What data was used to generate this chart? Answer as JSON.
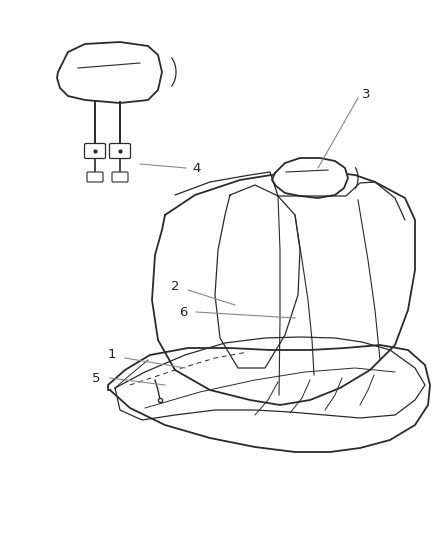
{
  "background_color": "#ffffff",
  "line_color": "#2a2a2a",
  "leader_line_color": "#888888",
  "label_color": "#222222",
  "fig_width": 4.38,
  "fig_height": 5.33,
  "dpi": 100
}
